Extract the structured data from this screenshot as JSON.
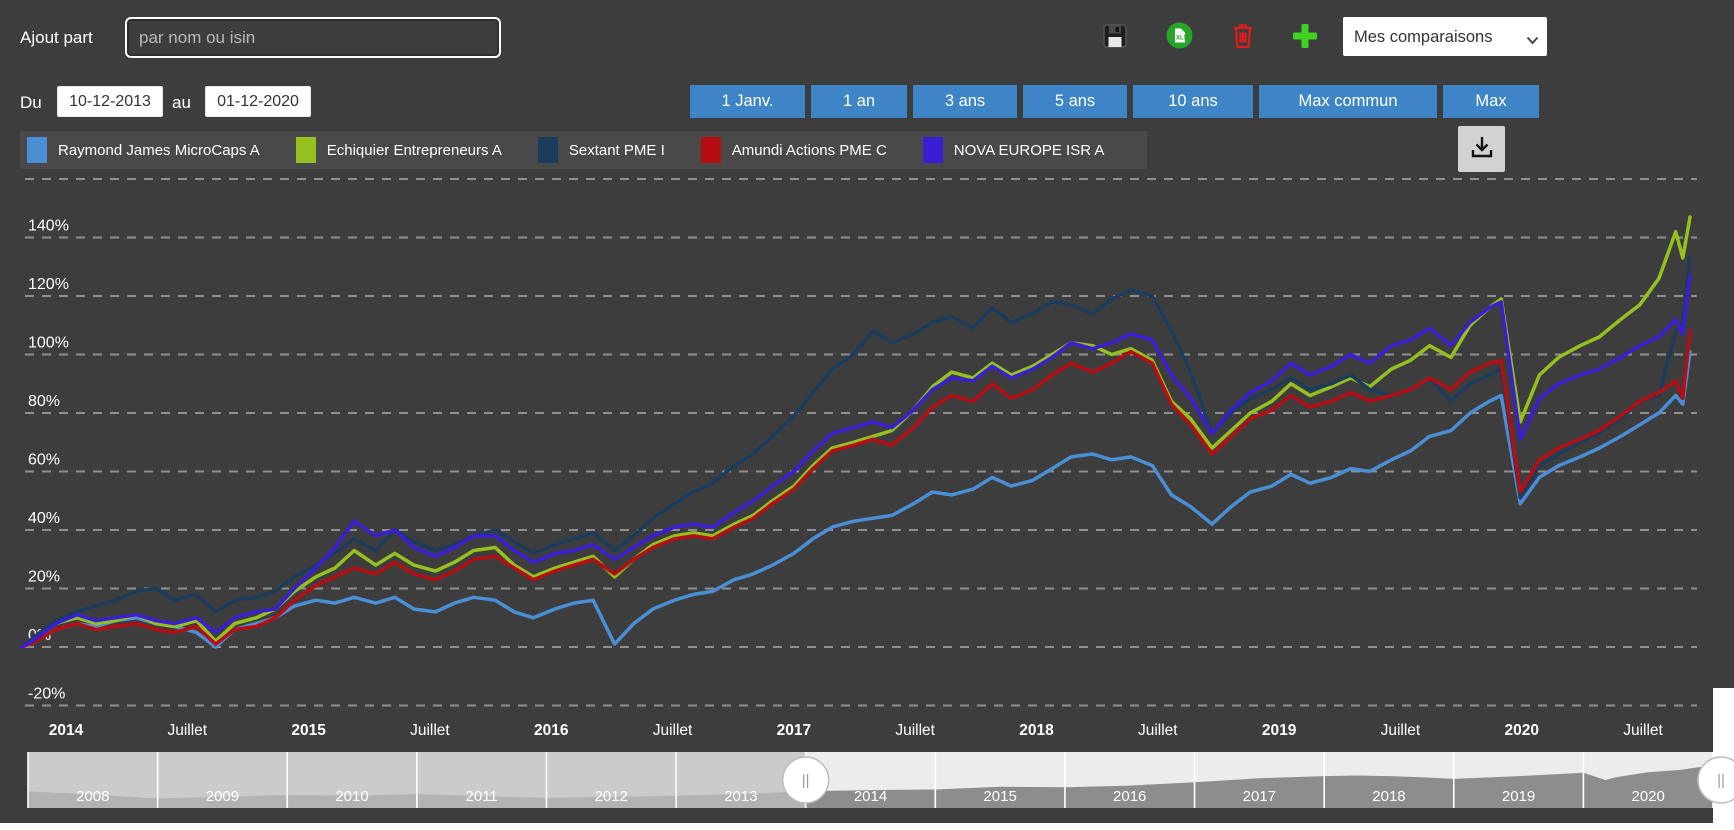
{
  "topbar": {
    "add_label": "Ajout part",
    "search_placeholder": "par nom ou isin",
    "icons": [
      {
        "name": "save-icon"
      },
      {
        "name": "excel-export-icon"
      },
      {
        "name": "trash-icon"
      },
      {
        "name": "add-plus-icon"
      }
    ],
    "comparisons_label": "Mes comparaisons"
  },
  "controls": {
    "du_label": "Du",
    "from_value": "10-12-2013",
    "au_label": "au",
    "to_value": "01-12-2020",
    "period_buttons": [
      "1 Janv.",
      "1 an",
      "3 ans",
      "5 ans",
      "10 ans",
      "Max commun",
      "Max"
    ]
  },
  "colors": {
    "accent_blue": "#3d85c6",
    "panel": "#3d3d3d",
    "legend_strip": "#494949",
    "grid": "#9f9f9f",
    "nav_track": "#ececec",
    "nav_area": "#8d8d8d",
    "nav_mask": "rgba(192,192,192,0.75)",
    "download_bg": "#d2d2d2",
    "trash_red": "#dd1c1c",
    "plus_green": "#3fd321",
    "excel_green": "#28a428"
  },
  "chart_data": {
    "type": "line",
    "title": "",
    "ylabel": "",
    "xlabel": "",
    "legend_position": "top",
    "grid": "dashed-horizontal",
    "ylim": [
      -20,
      160
    ],
    "y_axis": {
      "grid_values": [
        160,
        140,
        120,
        100,
        80,
        60,
        40,
        20,
        0,
        -20
      ],
      "tick_labels": [
        {
          "value": 140,
          "label": "140%"
        },
        {
          "value": 120,
          "label": "120%"
        },
        {
          "value": 100,
          "label": "100%"
        },
        {
          "value": 80,
          "label": "80%"
        },
        {
          "value": 60,
          "label": "60%"
        },
        {
          "value": 40,
          "label": "40%"
        },
        {
          "value": 20,
          "label": "20%"
        },
        {
          "value": 0,
          "label": "0%"
        },
        {
          "value": -20,
          "label": "-20%"
        }
      ]
    },
    "x_axis": {
      "labels": [
        {
          "text": "2014",
          "bold": true
        },
        {
          "text": "Juillet",
          "bold": false
        },
        {
          "text": "2015",
          "bold": true
        },
        {
          "text": "Juillet",
          "bold": false
        },
        {
          "text": "2016",
          "bold": true
        },
        {
          "text": "Juillet",
          "bold": false
        },
        {
          "text": "2017",
          "bold": true
        },
        {
          "text": "Juillet",
          "bold": false
        },
        {
          "text": "2018",
          "bold": true
        },
        {
          "text": "Juillet",
          "bold": false
        },
        {
          "text": "2019",
          "bold": true
        },
        {
          "text": "Juillet",
          "bold": false
        },
        {
          "text": "2020",
          "bold": true
        },
        {
          "text": "Juillet",
          "bold": false
        }
      ],
      "range_from": "10-12-2013",
      "range_to": "01-12-2020"
    },
    "x": [
      2013.94,
      2014.0,
      2014.08,
      2014.17,
      2014.25,
      2014.33,
      2014.42,
      2014.5,
      2014.58,
      2014.67,
      2014.75,
      2014.83,
      2014.92,
      2015.0,
      2015.08,
      2015.17,
      2015.25,
      2015.33,
      2015.42,
      2015.5,
      2015.58,
      2015.67,
      2015.75,
      2015.83,
      2015.92,
      2016.0,
      2016.08,
      2016.17,
      2016.25,
      2016.33,
      2016.42,
      2016.5,
      2016.58,
      2016.67,
      2016.75,
      2016.83,
      2016.92,
      2017.0,
      2017.08,
      2017.17,
      2017.25,
      2017.33,
      2017.42,
      2017.5,
      2017.58,
      2017.67,
      2017.75,
      2017.83,
      2017.92,
      2018.0,
      2018.08,
      2018.17,
      2018.25,
      2018.33,
      2018.42,
      2018.5,
      2018.58,
      2018.67,
      2018.75,
      2018.83,
      2018.92,
      2019.0,
      2019.08,
      2019.17,
      2019.25,
      2019.33,
      2019.42,
      2019.5,
      2019.58,
      2019.67,
      2019.75,
      2019.83,
      2019.92,
      2020.0,
      2020.08,
      2020.13,
      2020.21,
      2020.29,
      2020.37,
      2020.46,
      2020.54,
      2020.63,
      2020.71,
      2020.79,
      2020.86,
      2020.89,
      2020.92
    ],
    "series": [
      {
        "name": "Raymond James MicroCaps A",
        "color": "#4a8fd6",
        "values": [
          0,
          2,
          6,
          8,
          7,
          9,
          10,
          8,
          7,
          5,
          0,
          6,
          8,
          10,
          14,
          16,
          15,
          17,
          15,
          17,
          13,
          12,
          15,
          17,
          16,
          12,
          10,
          13,
          15,
          16,
          1,
          8,
          13,
          16,
          18,
          19,
          23,
          25,
          28,
          32,
          37,
          41,
          43,
          44,
          45,
          49,
          53,
          52,
          54,
          58,
          55,
          57,
          61,
          65,
          66,
          64,
          65,
          62,
          52,
          48,
          42,
          48,
          53,
          55,
          59,
          56,
          58,
          61,
          60,
          64,
          67,
          72,
          74,
          80,
          84,
          86,
          49,
          58,
          62,
          65,
          68,
          72,
          76,
          80,
          86,
          83,
          101
        ]
      },
      {
        "name": "Echiquier Entrepreneurs A",
        "color": "#95c11f",
        "values": [
          0,
          3,
          8,
          10,
          8,
          9,
          11,
          8,
          7,
          9,
          2,
          8,
          10,
          13,
          19,
          24,
          27,
          33,
          28,
          32,
          28,
          26,
          29,
          33,
          34,
          28,
          24,
          27,
          29,
          31,
          24,
          30,
          35,
          38,
          39,
          38,
          42,
          45,
          50,
          55,
          62,
          68,
          70,
          72,
          74,
          81,
          89,
          94,
          92,
          97,
          93,
          96,
          100,
          104,
          103,
          100,
          102,
          98,
          84,
          78,
          68,
          74,
          80,
          84,
          90,
          86,
          89,
          92,
          89,
          95,
          98,
          103,
          99,
          110,
          116,
          119,
          77,
          93,
          99,
          103,
          106,
          112,
          117,
          126,
          142,
          133,
          147
        ]
      },
      {
        "name": "Sextant PME I",
        "color": "#1c3c5e",
        "values": [
          0,
          4,
          9,
          12,
          14,
          16,
          19,
          20,
          16,
          18,
          12,
          16,
          17,
          19,
          24,
          28,
          32,
          37,
          33,
          40,
          36,
          33,
          35,
          38,
          40,
          36,
          32,
          35,
          37,
          39,
          33,
          38,
          44,
          49,
          53,
          56,
          62,
          66,
          72,
          79,
          87,
          95,
          100,
          108,
          104,
          107,
          111,
          113,
          109,
          116,
          111,
          114,
          118,
          117,
          114,
          119,
          122,
          120,
          108,
          94,
          73,
          80,
          85,
          88,
          92,
          88,
          90,
          93,
          88,
          86,
          88,
          92,
          84,
          90,
          93,
          95,
          51,
          62,
          66,
          70,
          73,
          78,
          84,
          86,
          108,
          111,
          133
        ]
      },
      {
        "name": "Amundi Actions PME C",
        "color": "#b50d12",
        "values": [
          0,
          2,
          6,
          8,
          6,
          7,
          8,
          6,
          5,
          7,
          1,
          6,
          7,
          10,
          16,
          21,
          24,
          27,
          25,
          29,
          25,
          23,
          26,
          30,
          31,
          27,
          23,
          26,
          28,
          30,
          25,
          30,
          34,
          37,
          38,
          37,
          41,
          44,
          49,
          54,
          61,
          67,
          69,
          71,
          69,
          75,
          82,
          86,
          84,
          90,
          85,
          88,
          93,
          97,
          94,
          97,
          101,
          97,
          83,
          76,
          66,
          72,
          78,
          81,
          86,
          82,
          84,
          87,
          84,
          86,
          88,
          92,
          88,
          94,
          97,
          98,
          53,
          64,
          68,
          71,
          74,
          79,
          84,
          87,
          91,
          85,
          108
        ]
      },
      {
        "name": "NOVA EUROPE ISR A",
        "color": "#3a1ed6",
        "values": [
          0,
          3,
          8,
          11,
          9,
          10,
          11,
          9,
          8,
          10,
          5,
          10,
          12,
          13,
          20,
          27,
          34,
          43,
          38,
          40,
          34,
          31,
          34,
          38,
          38,
          33,
          29,
          32,
          33,
          35,
          30,
          34,
          38,
          41,
          42,
          41,
          46,
          50,
          55,
          60,
          67,
          73,
          75,
          77,
          75,
          81,
          88,
          92,
          91,
          96,
          92,
          95,
          99,
          104,
          102,
          104,
          107,
          105,
          93,
          85,
          73,
          81,
          87,
          91,
          97,
          93,
          96,
          100,
          97,
          103,
          105,
          109,
          103,
          111,
          116,
          118,
          71,
          85,
          90,
          93,
          95,
          99,
          103,
          106,
          112,
          107,
          127
        ]
      }
    ],
    "navigator": {
      "years": [
        "2008",
        "2009",
        "2010",
        "2011",
        "2012",
        "2013",
        "2014",
        "2015",
        "2016",
        "2017",
        "2018",
        "2019",
        "2020"
      ],
      "selected_from_year": 2014,
      "handle_glyph": "||",
      "area_x": [
        2008,
        2008.5,
        2009,
        2009.5,
        2010,
        2010.5,
        2011,
        2011.5,
        2012,
        2012.5,
        2013,
        2013.5,
        2014,
        2014.5,
        2015,
        2015.5,
        2016,
        2016.5,
        2017,
        2017.5,
        2018,
        2018.25,
        2018.5,
        2018.75,
        2019,
        2019.5,
        2020,
        2020.17,
        2020.25,
        2020.5,
        2020.75,
        2020.95
      ],
      "area_f": [
        0.3,
        0.24,
        0.17,
        0.2,
        0.23,
        0.22,
        0.25,
        0.21,
        0.18,
        0.2,
        0.22,
        0.25,
        0.3,
        0.32,
        0.33,
        0.38,
        0.37,
        0.4,
        0.46,
        0.53,
        0.57,
        0.58,
        0.57,
        0.55,
        0.52,
        0.57,
        0.63,
        0.5,
        0.55,
        0.64,
        0.68,
        0.75
      ]
    }
  }
}
